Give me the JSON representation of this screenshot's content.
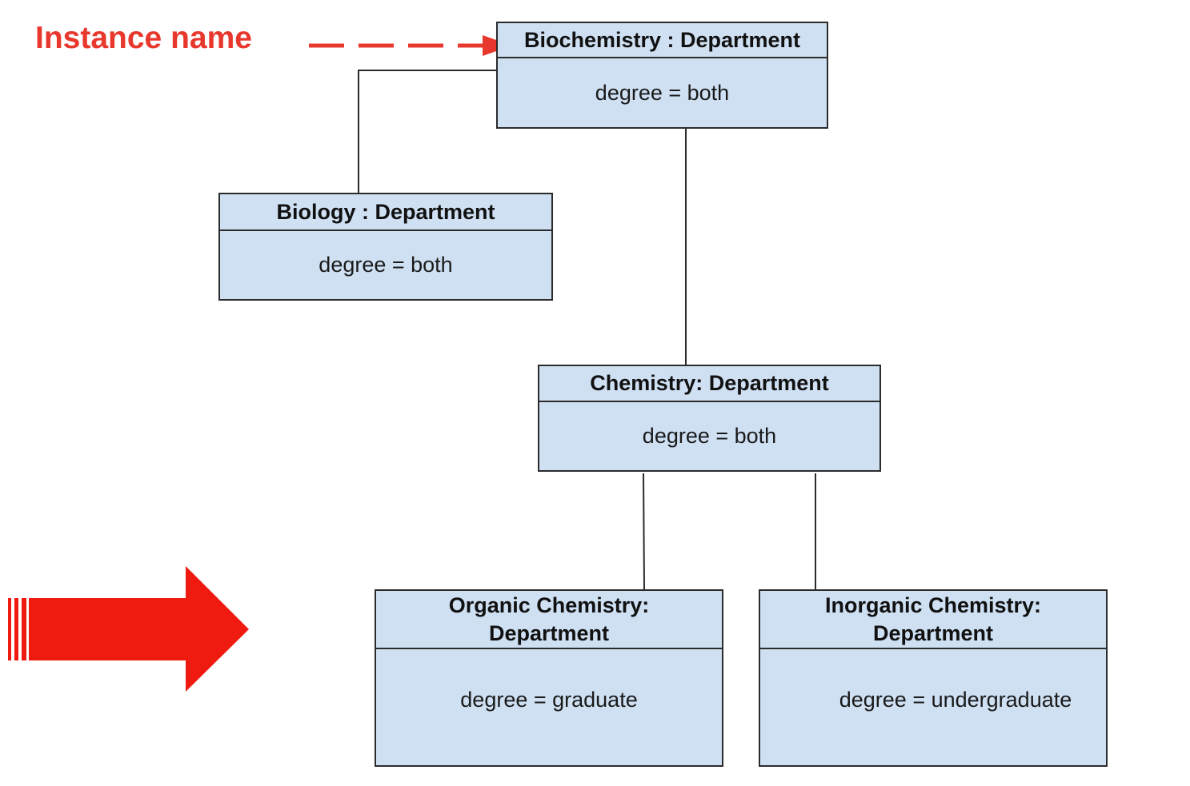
{
  "annotation": {
    "instance_label": "Instance name",
    "color": "#e8372c"
  },
  "theme": {
    "box_fill": "#cfe0f3",
    "box_border": "#2b2b2b",
    "arrow_red": "#ef1b10"
  },
  "objects": [
    {
      "id": "biochemistry",
      "name": "Biochemistry : Department",
      "attribute": "degree = both"
    },
    {
      "id": "biology",
      "name": "Biology : Department",
      "attribute": "degree = both"
    },
    {
      "id": "chemistry",
      "name": "Chemistry: Department",
      "attribute": "degree = both"
    },
    {
      "id": "organic",
      "name_line1": "Organic Chemistry:",
      "name_line2": "Department",
      "attribute": "degree = graduate"
    },
    {
      "id": "inorganic",
      "name_line1": "Inorganic Chemistry:",
      "name_line2": "Department",
      "attribute": "degree = undergraduate"
    }
  ],
  "links": [
    {
      "from": "biochemistry",
      "to": "biology"
    },
    {
      "from": "biochemistry",
      "to": "chemistry"
    },
    {
      "from": "chemistry",
      "to": "organic"
    },
    {
      "from": "chemistry",
      "to": "inorganic"
    }
  ],
  "icons": {
    "big_arrow": "right-arrow-icon",
    "dashed_arrow": "dashed-arrow-icon"
  }
}
